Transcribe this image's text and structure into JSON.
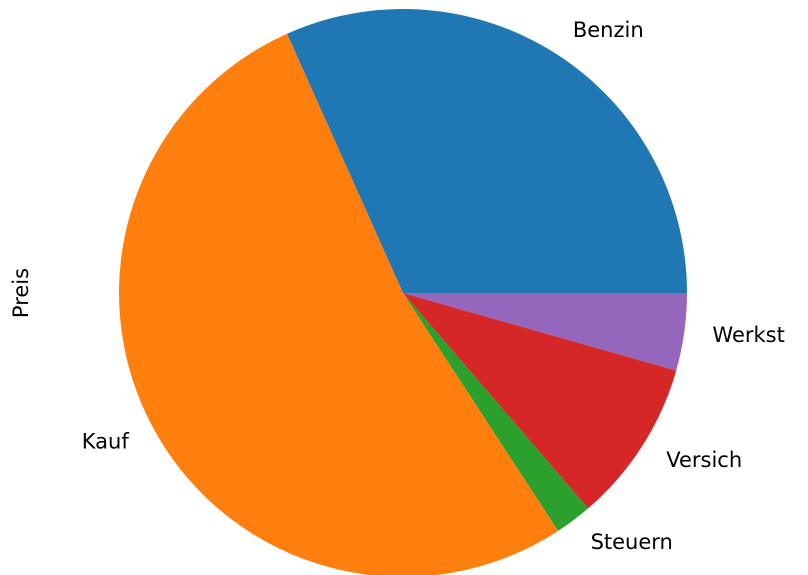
{
  "chart_data": {
    "type": "pie",
    "ylabel": "Preis",
    "categories": [
      "Benzin",
      "Kauf",
      "Steuern",
      "Versich",
      "Werkst"
    ],
    "values": [
      31.7,
      52.5,
      2.1,
      9.3,
      4.4
    ],
    "colors": [
      "#1f77b4",
      "#ff7f0e",
      "#2ca02c",
      "#d62728",
      "#9467bd"
    ]
  }
}
